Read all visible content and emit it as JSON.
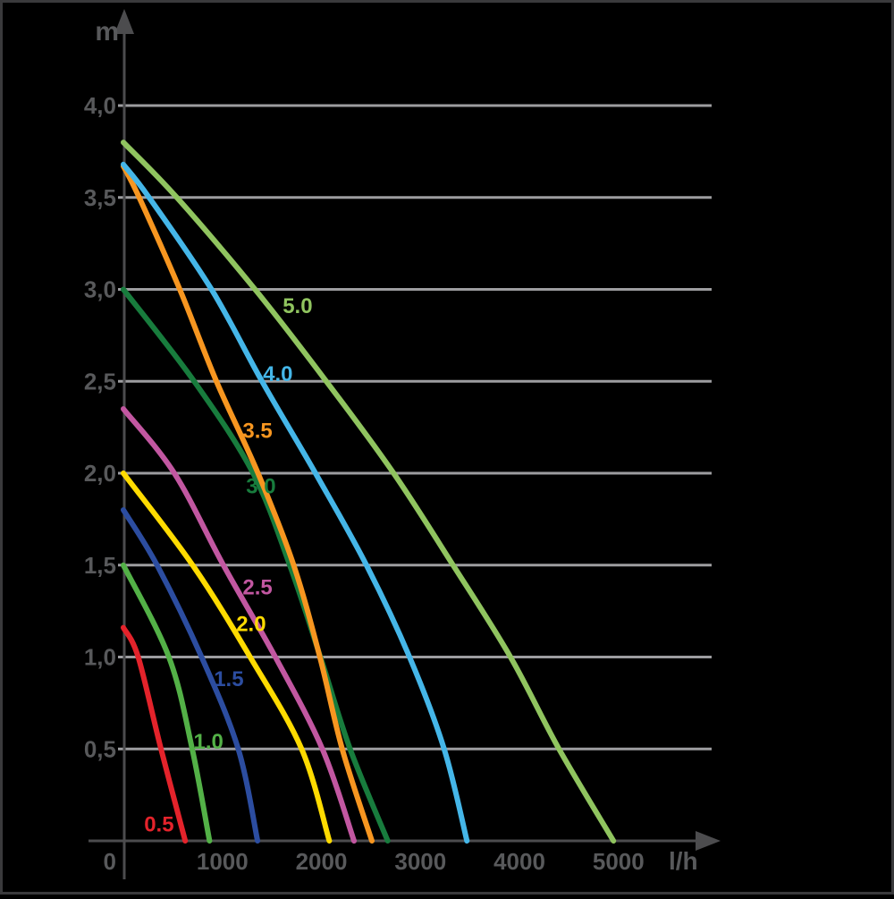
{
  "figure": {
    "background": "#000000",
    "frame_color": "#3A3A3C",
    "axis_color": "#4C4C4E",
    "grid_color": "#9D9DA0",
    "tick_label_color": "#58595B"
  },
  "chart_data": {
    "type": "line",
    "title": "",
    "xlabel": "l/h",
    "ylabel": "m",
    "xlim": [
      0,
      5000
    ],
    "ylim": [
      0,
      4.0
    ],
    "grid": "horizontal",
    "legend_position": "inline-labels",
    "x_ticks": {
      "values": [
        0,
        1000,
        2000,
        3000,
        4000,
        5000
      ],
      "labels": [
        "0",
        "1000",
        "2000",
        "3000",
        "4000",
        "5000"
      ]
    },
    "y_ticks": {
      "values": [
        4.0,
        3.5,
        3.0,
        2.5,
        2.0,
        1.5,
        1.0,
        0.5
      ],
      "labels": [
        "4,0",
        "3,5",
        "3,0",
        "2,5",
        "2,0",
        "1,5",
        "1,0",
        "0,5"
      ]
    },
    "series": [
      {
        "name": "0.5",
        "color": "#E4232B",
        "label": {
          "text": "0.5",
          "x": 360,
          "y": 0.09
        },
        "points": [
          [
            0,
            1.16
          ],
          [
            150,
            1.0
          ],
          [
            380,
            0.5
          ],
          [
            625,
            0
          ]
        ]
      },
      {
        "name": "1.0",
        "color": "#53B147",
        "label": {
          "text": "1.0",
          "x": 860,
          "y": 0.54
        },
        "points": [
          [
            0,
            1.5
          ],
          [
            460,
            1.0
          ],
          [
            695,
            0.5
          ],
          [
            870,
            0
          ]
        ]
      },
      {
        "name": "1.5",
        "color": "#2C4DA0",
        "label": {
          "text": "1.5",
          "x": 1065,
          "y": 0.88
        },
        "points": [
          [
            0,
            1.8
          ],
          [
            340,
            1.5
          ],
          [
            790,
            1.0
          ],
          [
            1160,
            0.5
          ],
          [
            1355,
            0
          ]
        ]
      },
      {
        "name": "2.0",
        "color": "#FFDB00",
        "label": {
          "text": "2.0",
          "x": 1290,
          "y": 1.18
        },
        "points": [
          [
            0,
            2.0
          ],
          [
            700,
            1.5
          ],
          [
            1280,
            1.0
          ],
          [
            1800,
            0.5
          ],
          [
            2080,
            0
          ]
        ]
      },
      {
        "name": "2.5",
        "color": "#C257A1",
        "label": {
          "text": "2.5",
          "x": 1355,
          "y": 1.38
        },
        "points": [
          [
            0,
            2.35
          ],
          [
            515,
            2.0
          ],
          [
            1010,
            1.5
          ],
          [
            1535,
            1.0
          ],
          [
            2010,
            0.5
          ],
          [
            2330,
            0
          ]
        ]
      },
      {
        "name": "3.0",
        "color": "#187C3D",
        "label": {
          "text": "3.0",
          "x": 1390,
          "y": 1.93
        },
        "points": [
          [
            0,
            3.0
          ],
          [
            715,
            2.5
          ],
          [
            1310,
            2.0
          ],
          [
            1680,
            1.5
          ],
          [
            1990,
            1.0
          ],
          [
            2290,
            0.5
          ],
          [
            2670,
            0
          ]
        ]
      },
      {
        "name": "3.5",
        "color": "#F79620",
        "label": {
          "text": "3.5",
          "x": 1355,
          "y": 2.23
        },
        "points": [
          [
            0,
            3.67
          ],
          [
            160,
            3.5
          ],
          [
            570,
            3.0
          ],
          [
            940,
            2.5
          ],
          [
            1360,
            2.0
          ],
          [
            1720,
            1.5
          ],
          [
            1985,
            1.0
          ],
          [
            2210,
            0.5
          ],
          [
            2510,
            0
          ]
        ]
      },
      {
        "name": "4.0",
        "color": "#45B6E8",
        "label": {
          "text": "4.0",
          "x": 1560,
          "y": 2.54
        },
        "points": [
          [
            0,
            3.68
          ],
          [
            260,
            3.5
          ],
          [
            890,
            3.0
          ],
          [
            1400,
            2.5
          ],
          [
            1940,
            2.0
          ],
          [
            2455,
            1.5
          ],
          [
            2890,
            1.0
          ],
          [
            3240,
            0.5
          ],
          [
            3470,
            0
          ]
        ]
      },
      {
        "name": "5.0",
        "color": "#90C45F",
        "label": {
          "text": "5.0",
          "x": 1760,
          "y": 2.91
        },
        "points": [
          [
            0,
            3.8
          ],
          [
            540,
            3.5
          ],
          [
            1330,
            3.0
          ],
          [
            2050,
            2.5
          ],
          [
            2730,
            2.0
          ],
          [
            3330,
            1.5
          ],
          [
            3910,
            1.0
          ],
          [
            4400,
            0.5
          ],
          [
            4950,
            0
          ]
        ]
      }
    ]
  }
}
